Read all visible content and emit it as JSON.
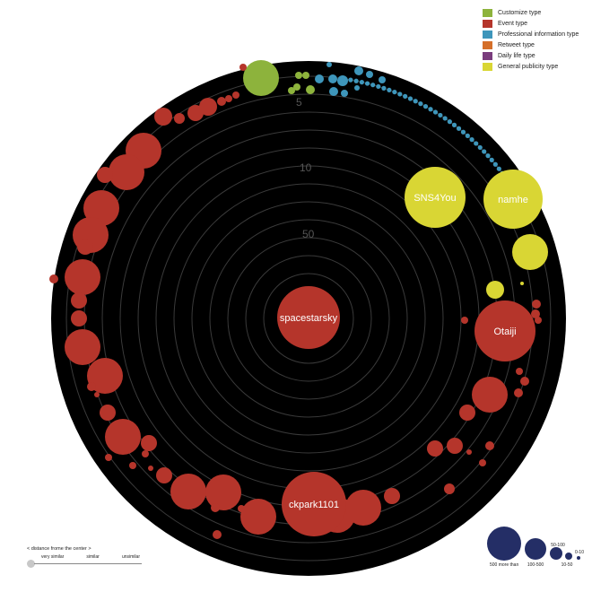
{
  "chart_data": {
    "type": "scatter",
    "title": "",
    "ring_labels": [
      "5",
      "10",
      "50"
    ],
    "legend": [
      {
        "label": "Customize type",
        "color": "#8db33c"
      },
      {
        "label": "Event type",
        "color": "#b5352b"
      },
      {
        "label": "Professional information type",
        "color": "#3e96bb"
      },
      {
        "label": "Retweet type",
        "color": "#d56f2a"
      },
      {
        "label": "Daily life type",
        "color": "#7a3d7d"
      },
      {
        "label": "General publicity type",
        "color": "#d9d634"
      }
    ],
    "named_nodes": [
      {
        "name": "spacestarsky",
        "type": "Event type"
      },
      {
        "name": "SNS4You",
        "type": "General publicity type"
      },
      {
        "name": "namhe",
        "type": "General publicity type"
      },
      {
        "name": "Otaiji",
        "type": "Event type"
      },
      {
        "name": "ckpark1101",
        "type": "Event type"
      }
    ],
    "distance_legend": {
      "title": "< distance frome the center >",
      "labels": [
        "very similar",
        "similar",
        "unsimilar"
      ]
    },
    "size_legend": [
      {
        "label": "500 more than"
      },
      {
        "label": "100-500"
      },
      {
        "label": "50-100"
      },
      {
        "label": "10-50"
      },
      {
        "label": "0-10"
      }
    ]
  }
}
